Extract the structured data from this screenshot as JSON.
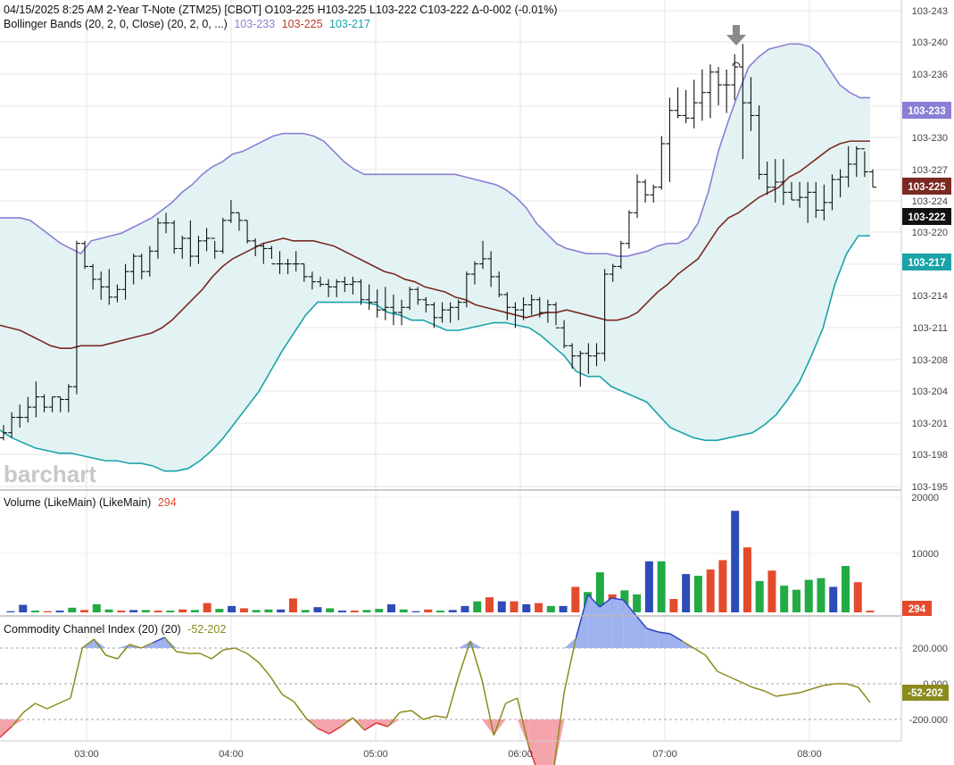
{
  "header": {
    "line1": "04/15/2025  8:25 AM 2-Year T-Note (ZTM25) [CBOT]  O103-225  H103-225  L103-222  C103-222  Δ-0-002 (-0.01%)",
    "bb_label": "Bollinger Bands (20, 2, 0, Close)  (20, 2, 0, ...)",
    "bb_upper_val": "103-233",
    "bb_mid_val": "103-225",
    "bb_lower_val": "103-217"
  },
  "watermark": "barchart",
  "volume_label": "Volume (LikeMain)  (LikeMain)",
  "volume_value": "294",
  "cci_label": "Commodity Channel Index (20)  (20)",
  "cci_value": "-52-202",
  "price_badges": {
    "upper": "103-233",
    "mid": "103-225",
    "last": "103-222",
    "lower": "103-217",
    "volume": "294",
    "cci": "-52-202"
  },
  "colors": {
    "upper_band": "#8a7fd6",
    "mid_band": "#7a2a22",
    "lower_band": "#1aa3a8",
    "band_fill": "#e3f3f3",
    "volume_up": "#22aa44",
    "volume_down": "#e44b2e",
    "volume_neutral": "#2e4cb8",
    "cci_line": "#8b8b1e",
    "cci_fill_up": "#9fb2f0",
    "cci_fill_down": "#f4a3aa",
    "last_badge": "#111111"
  },
  "chart_data": [
    {
      "type": "ohlc",
      "title": "2-Year T-Note (ZTM25) [CBOT]",
      "date": "04/15/2025",
      "x_ticks": [
        "03:00",
        "04:00",
        "05:00",
        "06:00",
        "07:00",
        "08:00"
      ],
      "y_ticks": [
        "103-243",
        "103-240",
        "103-236",
        "103-233",
        "103-230",
        "103-227",
        "103-224",
        "103-220",
        "103-217",
        "103-214",
        "103-211",
        "103-208",
        "103-204",
        "103-201",
        "103-198",
        "103-195"
      ],
      "y_unit": "32nds above 103",
      "ylim": [
        5.8,
        24.4
      ],
      "bars": [
        [
          7.6,
          8.1,
          7.5,
          7.8
        ],
        [
          7.8,
          8.6,
          7.6,
          8.4
        ],
        [
          8.4,
          8.9,
          8.0,
          8.4
        ],
        [
          8.4,
          9.2,
          8.2,
          8.8
        ],
        [
          8.8,
          9.8,
          8.4,
          9.2
        ],
        [
          9.2,
          9.3,
          8.6,
          8.8
        ],
        [
          8.8,
          9.2,
          8.6,
          9.2
        ],
        [
          9.2,
          9.2,
          8.6,
          9.1
        ],
        [
          9.1,
          9.7,
          8.6,
          9.6
        ],
        [
          9.6,
          15.3,
          9.3,
          15.2
        ],
        [
          15.2,
          15.3,
          14.2,
          14.3
        ],
        [
          14.3,
          14.4,
          13.4,
          13.8
        ],
        [
          13.8,
          14.1,
          13.0,
          13.5
        ],
        [
          13.5,
          14.2,
          12.8,
          13.1
        ],
        [
          13.1,
          13.6,
          12.9,
          13.4
        ],
        [
          13.4,
          14.4,
          13.0,
          14.1
        ],
        [
          14.1,
          14.8,
          13.6,
          14.7
        ],
        [
          14.7,
          14.8,
          13.8,
          14.1
        ],
        [
          14.1,
          15.1,
          13.9,
          14.9
        ],
        [
          14.9,
          16.2,
          14.6,
          16.0
        ],
        [
          16.0,
          16.4,
          15.6,
          16.0
        ],
        [
          16.0,
          16.1,
          14.8,
          15.0
        ],
        [
          15.0,
          15.5,
          14.6,
          15.4
        ],
        [
          15.4,
          16.1,
          14.3,
          14.7
        ],
        [
          14.7,
          15.5,
          14.4,
          15.3
        ],
        [
          15.3,
          15.8,
          14.9,
          15.4
        ],
        [
          15.4,
          15.3,
          14.6,
          14.9
        ],
        [
          14.9,
          16.2,
          14.8,
          16.1
        ],
        [
          16.1,
          16.9,
          16.0,
          16.4
        ],
        [
          16.4,
          16.4,
          15.7,
          16.1
        ],
        [
          16.1,
          16.1,
          15.2,
          15.3
        ],
        [
          15.3,
          15.4,
          14.7,
          15.1
        ],
        [
          15.1,
          15.2,
          14.4,
          15.0
        ],
        [
          15.0,
          15.1,
          14.6,
          14.4
        ],
        [
          14.4,
          14.9,
          14.0,
          14.4
        ],
        [
          14.4,
          14.6,
          14.0,
          14.4
        ],
        [
          14.4,
          14.9,
          14.1,
          14.4
        ],
        [
          14.4,
          14.4,
          13.7,
          13.9
        ],
        [
          13.9,
          14.1,
          13.4,
          13.7
        ],
        [
          13.7,
          13.9,
          13.5,
          13.6
        ],
        [
          13.6,
          13.8,
          13.1,
          13.5
        ],
        [
          13.5,
          13.8,
          13.1,
          13.7
        ],
        [
          13.7,
          13.9,
          13.3,
          13.6
        ],
        [
          13.6,
          13.9,
          13.2,
          13.7
        ],
        [
          13.7,
          13.8,
          12.8,
          13.0
        ],
        [
          13.0,
          13.6,
          12.6,
          12.9
        ],
        [
          12.9,
          13.4,
          12.3,
          12.6
        ],
        [
          12.6,
          13.5,
          12.2,
          12.7
        ],
        [
          12.7,
          13.2,
          12.0,
          12.5
        ],
        [
          12.5,
          13.0,
          12.0,
          12.7
        ],
        [
          12.7,
          13.5,
          12.6,
          13.4
        ],
        [
          13.4,
          13.5,
          12.8,
          13.0
        ],
        [
          13.0,
          13.1,
          12.5,
          12.8
        ],
        [
          12.8,
          12.9,
          11.9,
          12.3
        ],
        [
          12.3,
          12.9,
          12.1,
          12.6
        ],
        [
          12.6,
          12.9,
          12.1,
          12.7
        ],
        [
          12.7,
          13.0,
          12.2,
          12.9
        ],
        [
          12.9,
          14.1,
          12.7,
          14.0
        ],
        [
          14.0,
          14.5,
          13.6,
          14.4
        ],
        [
          14.4,
          15.3,
          14.2,
          14.6
        ],
        [
          14.6,
          14.9,
          13.5,
          13.9
        ],
        [
          13.9,
          14.1,
          13.1,
          13.2
        ],
        [
          13.2,
          13.3,
          12.2,
          12.7
        ],
        [
          12.7,
          12.9,
          11.9,
          12.6
        ],
        [
          12.6,
          13.1,
          12.2,
          12.8
        ],
        [
          12.8,
          13.2,
          12.4,
          13.0
        ],
        [
          13.0,
          13.1,
          12.3,
          12.5
        ],
        [
          12.5,
          13.0,
          12.1,
          12.8
        ],
        [
          12.8,
          12.9,
          12.0,
          11.9
        ],
        [
          11.9,
          12.2,
          11.1,
          11.2
        ],
        [
          11.2,
          11.3,
          10.3,
          10.8
        ],
        [
          10.8,
          11.0,
          9.6,
          10.9
        ],
        [
          10.9,
          11.3,
          10.1,
          10.8
        ],
        [
          10.8,
          11.3,
          10.4,
          10.9
        ],
        [
          10.9,
          14.2,
          10.6,
          14.0
        ],
        [
          14.0,
          14.4,
          13.7,
          14.3
        ],
        [
          14.3,
          15.3,
          14.2,
          15.2
        ],
        [
          15.2,
          16.5,
          15.0,
          16.4
        ],
        [
          16.4,
          17.9,
          16.2,
          17.6
        ],
        [
          17.6,
          17.7,
          16.8,
          17.1
        ],
        [
          17.1,
          17.5,
          16.8,
          17.4
        ],
        [
          17.4,
          19.4,
          17.3,
          19.1
        ],
        [
          19.1,
          20.9,
          17.6,
          20.4
        ],
        [
          20.4,
          21.3,
          20.1,
          20.2
        ],
        [
          20.2,
          21.2,
          19.9,
          20.1
        ],
        [
          20.1,
          21.6,
          19.7,
          20.7
        ],
        [
          20.7,
          22.0,
          20.0,
          21.1
        ],
        [
          21.1,
          22.2,
          20.1,
          21.9
        ],
        [
          21.9,
          22.1,
          20.6,
          21.4
        ],
        [
          21.4,
          22.0,
          20.3,
          21.4
        ],
        [
          21.4,
          22.6,
          20.8,
          22.1
        ],
        [
          22.1,
          23.0,
          18.5,
          20.7
        ],
        [
          20.7,
          21.7,
          19.6,
          20.2
        ],
        [
          20.2,
          20.6,
          17.7,
          17.9
        ],
        [
          17.9,
          18.4,
          17.1,
          17.4
        ],
        [
          17.4,
          18.5,
          16.8,
          17.6
        ],
        [
          17.6,
          18.5,
          16.7,
          17.2
        ],
        [
          17.2,
          17.6,
          16.9,
          16.9
        ],
        [
          16.9,
          17.6,
          16.6,
          17.0
        ],
        [
          17.0,
          17.6,
          16.0,
          17.2
        ],
        [
          17.2,
          17.6,
          16.2,
          16.5
        ],
        [
          16.5,
          17.5,
          16.1,
          16.8
        ],
        [
          16.8,
          17.9,
          16.5,
          17.7
        ],
        [
          17.7,
          18.1,
          17.0,
          17.8
        ],
        [
          17.8,
          19.0,
          17.4,
          18.3
        ],
        [
          18.3,
          19.0,
          17.8,
          18.9
        ],
        [
          18.9,
          18.8,
          17.8,
          18.0
        ],
        [
          18.0,
          18.1,
          17.4,
          17.4
        ]
      ],
      "bollinger_upper": [
        16.2,
        16.2,
        16.2,
        16.1,
        15.8,
        15.5,
        15.2,
        15.0,
        14.8,
        15.3,
        15.4,
        15.5,
        15.6,
        15.8,
        16.0,
        16.2,
        16.5,
        16.8,
        17.2,
        17.5,
        17.9,
        18.2,
        18.4,
        18.7,
        18.8,
        19.0,
        19.2,
        19.4,
        19.5,
        19.5,
        19.5,
        19.4,
        19.2,
        18.8,
        18.4,
        18.1,
        17.9,
        17.9,
        17.9,
        17.9,
        17.9,
        17.9,
        17.9,
        17.9,
        17.9,
        17.9,
        17.8,
        17.7,
        17.6,
        17.5,
        17.3,
        17.0,
        16.6,
        16.0,
        15.6,
        15.2,
        15.0,
        14.9,
        14.8,
        14.8,
        14.8,
        14.7,
        14.7,
        14.8,
        14.9,
        15.1,
        15.2,
        15.2,
        15.4,
        16.0,
        17.2,
        18.8,
        20.0,
        21.1,
        22.1,
        22.5,
        22.8,
        22.9,
        23.0,
        23.0,
        22.9,
        22.6,
        22.0,
        21.4,
        21.1,
        20.9,
        20.9
      ],
      "bollinger_middle": [
        12.0,
        11.9,
        11.8,
        11.6,
        11.4,
        11.2,
        11.1,
        11.1,
        11.2,
        11.2,
        11.2,
        11.3,
        11.4,
        11.5,
        11.6,
        11.7,
        11.9,
        12.2,
        12.6,
        13.0,
        13.4,
        13.9,
        14.3,
        14.6,
        14.8,
        15.0,
        15.2,
        15.3,
        15.4,
        15.3,
        15.3,
        15.3,
        15.2,
        15.1,
        14.9,
        14.7,
        14.5,
        14.3,
        14.1,
        14.0,
        13.8,
        13.7,
        13.5,
        13.4,
        13.3,
        13.1,
        13.0,
        12.8,
        12.7,
        12.6,
        12.5,
        12.4,
        12.3,
        12.4,
        12.5,
        12.5,
        12.6,
        12.5,
        12.4,
        12.3,
        12.2,
        12.2,
        12.3,
        12.5,
        12.9,
        13.3,
        13.6,
        14.0,
        14.3,
        14.6,
        15.2,
        15.8,
        16.2,
        16.4,
        16.7,
        17.0,
        17.2,
        17.4,
        17.8,
        18.0,
        18.3,
        18.6,
        18.9,
        19.1,
        19.2,
        19.2,
        19.2
      ],
      "bollinger_lower": [
        7.9,
        7.6,
        7.4,
        7.2,
        7.1,
        7.0,
        7.0,
        6.9,
        6.8,
        6.7,
        6.7,
        6.6,
        6.6,
        6.5,
        6.3,
        6.3,
        6.4,
        6.7,
        7.1,
        7.6,
        8.2,
        8.8,
        9.4,
        10.2,
        11.0,
        11.7,
        12.4,
        12.9,
        12.9,
        12.9,
        12.9,
        12.9,
        12.8,
        12.5,
        12.4,
        12.2,
        12.2,
        12.0,
        11.8,
        11.8,
        11.9,
        12.0,
        12.1,
        12.1,
        12.0,
        11.9,
        11.6,
        11.2,
        10.8,
        10.2,
        10.0,
        10.0,
        9.6,
        9.4,
        9.2,
        9.0,
        8.5,
        8.0,
        7.8,
        7.6,
        7.5,
        7.5,
        7.6,
        7.7,
        7.8,
        8.1,
        8.5,
        9.1,
        9.8,
        10.8,
        11.9,
        13.6,
        14.8,
        15.5,
        15.5
      ]
    },
    {
      "type": "bar",
      "title": "Volume (LikeMain)",
      "y_ticks": [
        "20000",
        "10000"
      ],
      "ylim": [
        0,
        20000
      ],
      "last_value": 294,
      "values": [
        200,
        1300,
        300,
        200,
        300,
        800,
        400,
        1400,
        500,
        300,
        400,
        400,
        300,
        300,
        500,
        400,
        1600,
        600,
        1100,
        700,
        400,
        500,
        500,
        2400,
        400,
        900,
        700,
        300,
        300,
        400,
        600,
        1400,
        500,
        200,
        500,
        300,
        400,
        1100,
        1900,
        2600,
        1900,
        1900,
        1400,
        1600,
        1100,
        1100,
        4400,
        3500,
        6900,
        3100,
        3800,
        3100,
        8800,
        8800,
        2300,
        6600,
        6300,
        7400,
        9000,
        17500,
        11200,
        5400,
        7200,
        4600,
        3900,
        5600,
        5900,
        4400,
        8000,
        5200,
        300
      ],
      "colors_seq": [
        "n",
        "n",
        "g",
        "r",
        "n",
        "g",
        "r",
        "g",
        "g",
        "r",
        "n",
        "g",
        "r",
        "g",
        "r",
        "g",
        "r",
        "g",
        "n",
        "r",
        "g",
        "g",
        "n",
        "r",
        "g",
        "n",
        "g",
        "n",
        "r",
        "g",
        "g",
        "n",
        "g",
        "n",
        "r",
        "g",
        "n",
        "n",
        "g",
        "r",
        "n",
        "r",
        "n",
        "r",
        "g",
        "n",
        "r",
        "g",
        "g",
        "r",
        "g",
        "g",
        "n",
        "g",
        "r",
        "n",
        "g",
        "r",
        "r",
        "n",
        "r",
        "g",
        "r",
        "g",
        "g",
        "g",
        "g",
        "n",
        "g",
        "r",
        "r"
      ]
    },
    {
      "type": "line",
      "title": "Commodity Channel Index (20)",
      "y_ticks": [
        "200.000",
        "0.000",
        "-200.000"
      ],
      "ylim": [
        -280,
        280
      ],
      "reference_lines": [
        100,
        0,
        -100
      ],
      "last_value": "-52-202",
      "values": [
        -150,
        -120,
        -80,
        -55,
        -70,
        -55,
        -40,
        100,
        125,
        80,
        70,
        110,
        100,
        115,
        130,
        90,
        85,
        85,
        70,
        95,
        100,
        85,
        60,
        20,
        -30,
        -50,
        -95,
        -125,
        -140,
        -120,
        -95,
        -130,
        -110,
        -120,
        -80,
        -75,
        -100,
        -90,
        -95,
        20,
        120,
        10,
        -145,
        -55,
        -40,
        -180,
        -270,
        -260,
        -20,
        130,
        250,
        215,
        240,
        235,
        195,
        155,
        145,
        140,
        120,
        100,
        80,
        35,
        20,
        5,
        -10,
        -20,
        -35,
        -30,
        -25,
        -15,
        -5,
        0,
        0,
        -10,
        -52
      ]
    }
  ],
  "x_axis_labels": [
    "03:00",
    "04:00",
    "05:00",
    "06:00",
    "07:00",
    "08:00"
  ],
  "price_axis_labels": [
    "103-243",
    "103-240",
    "103-236",
    "103-233",
    "103-230",
    "103-227",
    "103-224",
    "103-220",
    "103-217",
    "103-214",
    "103-211",
    "103-208",
    "103-204",
    "103-201",
    "103-198",
    "103-195"
  ],
  "volume_axis_labels": [
    "20000",
    "10000"
  ],
  "cci_axis_labels": [
    "200.000",
    "0.000",
    "-200.000"
  ]
}
